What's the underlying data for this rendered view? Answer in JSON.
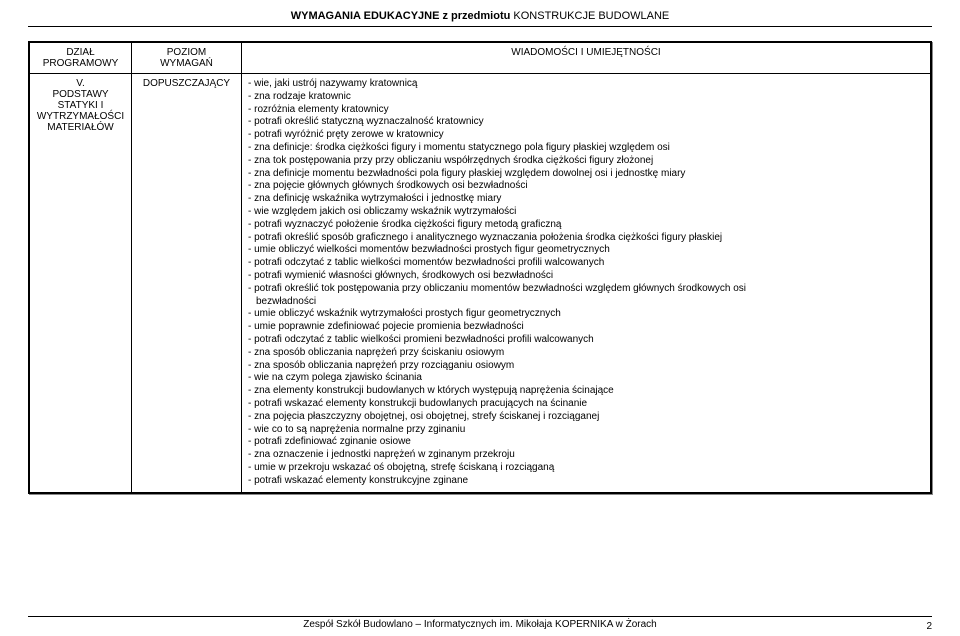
{
  "header": {
    "prefix": "WYMAGANIA EDUKACYJNE z przedmiotu ",
    "subject": "KONSTRUKCJE BUDOWLANE"
  },
  "table": {
    "headers": {
      "col1_l1": "DZIAŁ",
      "col1_l2": "PROGRAMOWY",
      "col2_l1": "POZIOM",
      "col2_l2": "WYMAGAŃ",
      "col3": "WIADOMOŚCI I UMIEJĘTNOŚCI"
    },
    "row": {
      "col1_l1": "V.",
      "col1_l2": "PODSTAWY",
      "col1_l3": "STATYKI I",
      "col1_l4": "WYTRZYMAŁOŚCI",
      "col1_l5": "MATERIAŁÓW",
      "col2": "DOPUSZCZAJĄCY",
      "items": [
        "- wie, jaki ustrój nazywamy kratownicą",
        "- zna rodzaje kratownic",
        "- rozróżnia elementy kratownicy",
        "- potrafi określić statyczną wyznaczalność kratownicy",
        "- potrafi wyróżnić pręty zerowe w kratownicy",
        "- zna definicje: środka ciężkości figury i momentu statycznego pola figury płaskiej względem osi",
        "- zna tok postępowania przy przy obliczaniu współrzędnych środka ciężkości figury złożonej",
        "- zna definicje momentu bezwładności pola figury płaskiej względem dowolnej osi i jednostkę miary",
        "- zna pojęcie głównych głównych środkowych osi bezwładności",
        "- zna definicję wskaźnika wytrzymałości i jednostkę miary",
        "- wie względem jakich osi obliczamy wskaźnik wytrzymałości",
        "- potrafi wyznaczyć położenie środka ciężkości figury metodą graficzną",
        "- potrafi określić sposób graficznego i analitycznego wyznaczania położenia środka ciężkości figury płaskiej",
        "- umie obliczyć wielkości momentów bezwładności prostych figur geometrycznych",
        "- potrafi odczytać z tablic wielkości momentów bezwładności profili walcowanych",
        "- potrafi wymienić własności  głównych, środkowych osi bezwładności",
        "- potrafi określić tok postępowania przy obliczaniu momentów bezwładności względem głównych środkowych osi",
        "  bezwładności",
        "- umie obliczyć wskaźnik wytrzymałości prostych figur geometrycznych",
        "- umie poprawnie zdefiniować pojecie promienia bezwładności",
        "- potrafi odczytać z tablic wielkości promieni bezwładności profili walcowanych",
        "- zna sposób obliczania naprężeń przy ściskaniu osiowym",
        "- zna sposób obliczania naprężeń przy rozciąganiu osiowym",
        "- wie na czym polega zjawisko ścinania",
        "- zna elementy konstrukcji budowlanych w których występują naprężenia ścinające",
        "- potrafi wskazać elementy konstrukcji budowlanych pracujących na ścinanie",
        "- zna pojęcia płaszczyzny obojętnej, osi obojętnej, strefy ściskanej i rozciąganej",
        "- wie co to są naprężenia normalne przy zginaniu",
        "- potrafi zdefiniować zginanie osiowe",
        "- zna oznaczenie i jednostki naprężeń w zginanym przekroju",
        "- umie w przekroju wskazać oś obojętną, strefę ściskaną i rozciąganą",
        "- potrafi wskazać elementy konstrukcyjne zginane"
      ]
    }
  },
  "footer": {
    "text": "Zespół Szkół Budowlano – Informatycznych im. Mikołaja KOPERNIKA w Żorach",
    "page": "2"
  }
}
